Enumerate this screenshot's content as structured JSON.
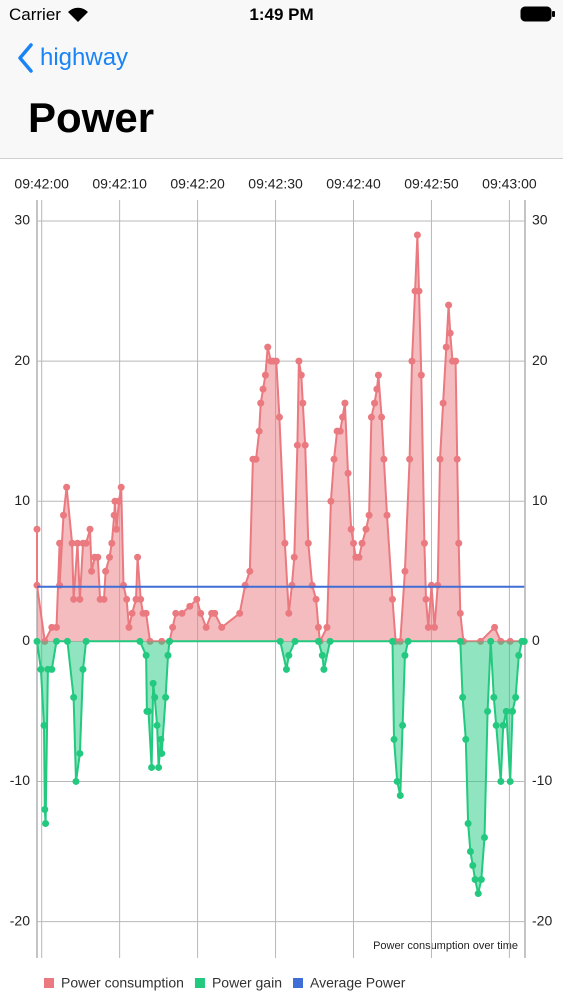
{
  "status_bar": {
    "carrier": "Carrier",
    "time": "1:49 PM"
  },
  "nav": {
    "back": "highway",
    "title": "Power"
  },
  "chart_data": {
    "type": "line",
    "description": "Power consumption over time",
    "xlim": [
      -0.6,
      62
    ],
    "ylim": [
      -22.6,
      31.5
    ],
    "y2lim": [
      -22.6,
      31.5
    ],
    "xticks": [
      {
        "value": 0,
        "label": "09:42:00"
      },
      {
        "value": 10,
        "label": "09:42:10"
      },
      {
        "value": 20,
        "label": "09:42:20"
      },
      {
        "value": 30,
        "label": "09:42:30"
      },
      {
        "value": 40,
        "label": "09:42:40"
      },
      {
        "value": 50,
        "label": "09:42:50"
      },
      {
        "value": 60,
        "label": "09:43:00"
      }
    ],
    "yticks": [
      -20,
      -10,
      0,
      10,
      20,
      30
    ],
    "y2ticks": [
      -20,
      -10,
      0,
      10,
      20,
      30
    ],
    "grid": true,
    "legend": "bottom-left",
    "series": [
      {
        "name": "Power consumption",
        "color": "#ea7a80",
        "fill": true,
        "x": [
          -0.6,
          -0.6,
          0.4,
          1.3,
          1.9,
          2.3,
          2.3,
          2.8,
          3.2,
          3.9,
          4.1,
          4.6,
          4.9,
          5.3,
          5.7,
          6.2,
          6.4,
          6.8,
          7.2,
          7.5,
          8.0,
          8.2,
          8.7,
          9.0,
          9.3,
          9.4,
          9.6,
          9.9,
          10.2,
          10.5,
          10.9,
          11.2,
          11.6,
          12.1,
          12.3,
          12.7,
          13.0,
          13.4,
          13.9,
          15.4,
          16.4,
          16.8,
          17.2,
          18.0,
          19.0,
          19.9,
          20.4,
          21.1,
          21.8,
          22.2,
          23.1,
          25.4,
          26.1,
          26.7,
          27.1,
          27.5,
          27.9,
          28.1,
          28.4,
          28.7,
          29.0,
          29.4,
          29.7,
          30.1,
          30.5,
          31.2,
          31.7,
          32.1,
          32.4,
          32.8,
          33.0,
          33.3,
          33.5,
          33.8,
          34.2,
          34.7,
          35.2,
          35.5,
          35.7,
          36.6,
          37.1,
          37.5,
          37.9,
          38.3,
          38.6,
          38.9,
          39.3,
          39.7,
          40.0,
          40.3,
          40.7,
          41.1,
          41.6,
          42.0,
          42.3,
          42.7,
          43.0,
          43.2,
          43.6,
          43.9,
          44.3,
          45.0,
          45.4,
          46.0,
          46.6,
          47.2,
          47.5,
          47.9,
          48.2,
          48.4,
          48.7,
          49.1,
          49.3,
          49.6,
          50.0,
          50.4,
          50.8,
          51.1,
          51.5,
          51.9,
          52.2,
          52.4,
          52.7,
          53.1,
          53.3,
          53.5,
          53.7,
          54.1,
          56.3,
          58.1,
          58.9,
          60.1,
          61.9
        ],
        "values": [
          8,
          4,
          0,
          1,
          1,
          7,
          4,
          9,
          11,
          7,
          3,
          7,
          3,
          7,
          7,
          8,
          5,
          6,
          6,
          3,
          3,
          5,
          6,
          7,
          9,
          10,
          8,
          10,
          11,
          4,
          3,
          1,
          2,
          3,
          6,
          3,
          2,
          2,
          0,
          0,
          0,
          1,
          2,
          2,
          2.5,
          3,
          2,
          1,
          2,
          2,
          1,
          2,
          4,
          5,
          13,
          13,
          15,
          17,
          18,
          19,
          21,
          20,
          20,
          20,
          16,
          7,
          2,
          4,
          6,
          14,
          20,
          19,
          17,
          14,
          7,
          4,
          3,
          1,
          0,
          1,
          10,
          13,
          15,
          15,
          16,
          17,
          12,
          8,
          7,
          6,
          6,
          7,
          8,
          9,
          16,
          17,
          18,
          19,
          16,
          13,
          9,
          3,
          0,
          0,
          5,
          13,
          20,
          25,
          29,
          25,
          19,
          7,
          3,
          1,
          4,
          1,
          4,
          13,
          17,
          21,
          24,
          22,
          20,
          20,
          13,
          7,
          2,
          0,
          0,
          1,
          0,
          0,
          0
        ]
      },
      {
        "name": "Power gain",
        "color": "#22c97f",
        "fill": true,
        "x": [
          -0.6,
          -0.1,
          0.3,
          0.4,
          0.5,
          0.8,
          1.3,
          1.9,
          3.3,
          4.1,
          4.4,
          4.9,
          5.3,
          5.7,
          12.6,
          13.4,
          13.5,
          13.7,
          14.1,
          14.3,
          14.5,
          14.8,
          15.0,
          15.3,
          15.4,
          15.9,
          16.2,
          16.4,
          30.6,
          31.4,
          31.7,
          32.5,
          35.5,
          36.0,
          36.2,
          37.0,
          45.0,
          45.2,
          45.6,
          46.0,
          46.3,
          46.6,
          47.0,
          53.7,
          54.0,
          54.4,
          54.7,
          55.0,
          55.3,
          55.6,
          56.0,
          56.4,
          56.8,
          57.2,
          57.6,
          58.0,
          58.3,
          58.9,
          59.2,
          59.6,
          60.1,
          60.4,
          60.8,
          61.2,
          61.6,
          61.9
        ],
        "values": [
          0,
          -2,
          -6,
          -12,
          -13,
          -2,
          -2,
          0,
          0,
          -4,
          -10,
          -8,
          -2,
          0,
          0,
          -1,
          -5,
          -5,
          -9,
          -3,
          -4,
          -6,
          -9,
          -7,
          -8,
          -4,
          -1,
          0,
          0,
          -2,
          -1,
          0,
          0,
          -1,
          -2,
          0,
          0,
          -7,
          -10,
          -11,
          -6,
          -1,
          0,
          0,
          -4,
          -7,
          -13,
          -15,
          -16,
          -17,
          -18,
          -17,
          -14,
          -5,
          0,
          -4,
          -6,
          -10,
          -6,
          -5,
          -10,
          -5,
          -4,
          -1,
          0,
          0
        ]
      },
      {
        "name": "Average Power",
        "color": "#3f6fd6",
        "fill": false,
        "x": [
          -0.6,
          61.9
        ],
        "values": [
          3.9,
          3.9
        ]
      }
    ]
  }
}
